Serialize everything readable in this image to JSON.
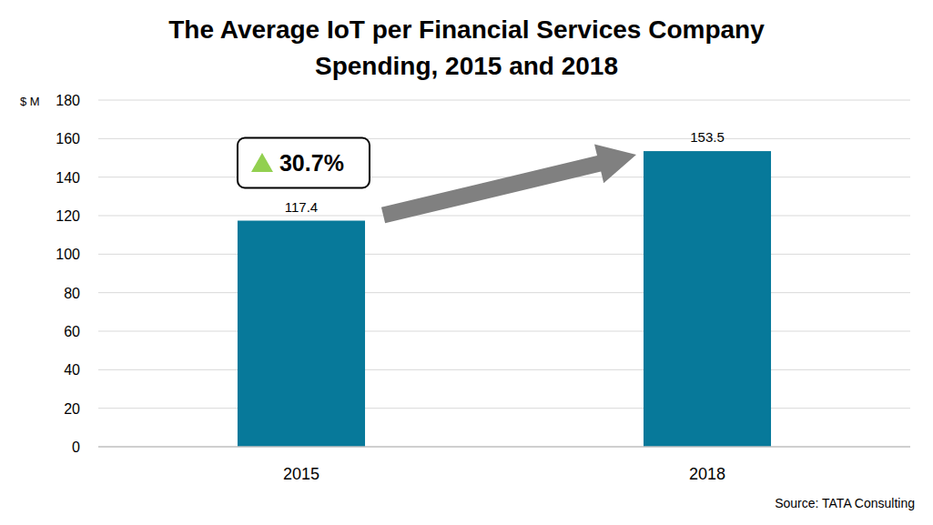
{
  "chart_data": {
    "type": "bar",
    "title": "The Average IoT per Financial Services Company Spending, 2015 and 2018",
    "ylabel": "$ M",
    "categories": [
      "2015",
      "2018"
    ],
    "values": [
      117.4,
      153.5
    ],
    "color": "#07799a",
    "ylim": [
      0,
      180
    ],
    "yticks": [
      0,
      20,
      40,
      60,
      80,
      100,
      120,
      140,
      160,
      180
    ],
    "grid": true,
    "data_labels": true,
    "annotations": [
      "30.7%"
    ],
    "source": "Source: TATA Consulting"
  }
}
